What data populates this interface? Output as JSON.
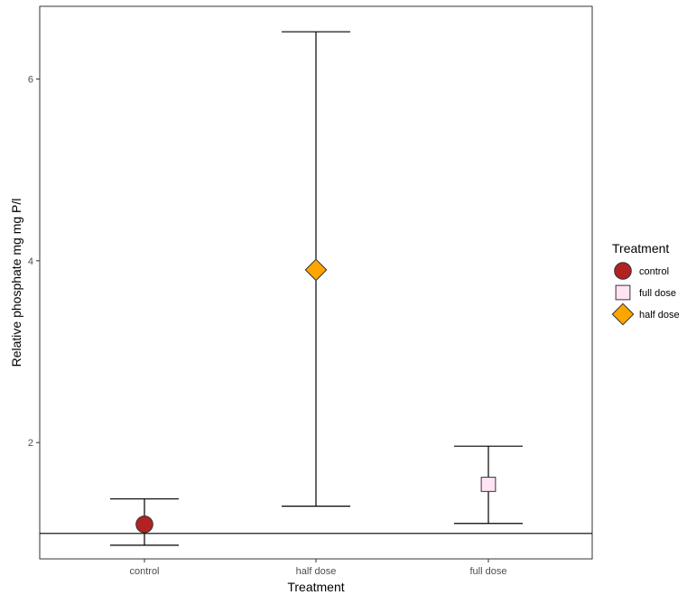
{
  "chart_data": {
    "type": "scatter",
    "title": "",
    "xlabel": "Treatment",
    "ylabel": "Relative phosphate mg mg P/l",
    "categories": [
      "control",
      "half dose",
      "full dose"
    ],
    "ylim": [
      0.72,
      6.8
    ],
    "y_ticks": [
      2,
      4,
      6
    ],
    "reference_line": 1.0,
    "grid": false,
    "points": [
      {
        "category": "control",
        "y": 1.1,
        "ymin": 0.87,
        "ymax": 1.38,
        "color": "#b22222",
        "shape": "circle"
      },
      {
        "category": "half dose",
        "y": 3.9,
        "ymin": 1.3,
        "ymax": 6.52,
        "color": "#ffa500",
        "shape": "diamond"
      },
      {
        "category": "full dose",
        "y": 1.54,
        "ymin": 1.11,
        "ymax": 1.96,
        "color": "#ffe4f5",
        "shape": "square"
      }
    ],
    "legend": {
      "title": "Treatment",
      "placement": "right",
      "entries": [
        {
          "label": "control",
          "color": "#b22222",
          "shape": "circle"
        },
        {
          "label": "full dose",
          "color": "#ffe4f5",
          "shape": "square"
        },
        {
          "label": "half dose",
          "color": "#ffa500",
          "shape": "diamond"
        }
      ]
    }
  }
}
